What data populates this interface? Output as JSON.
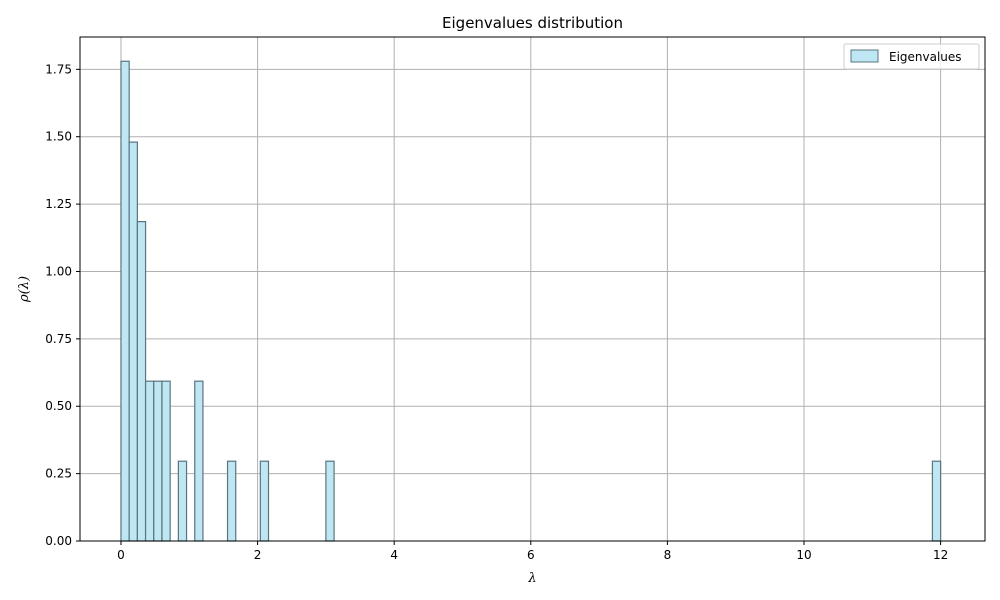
{
  "chart_data": {
    "type": "bar",
    "title": "Eigenvalues distribution",
    "xlabel": "λ",
    "ylabel": "ρ(λ)",
    "xlim": [
      -0.6,
      12.65
    ],
    "ylim": [
      0,
      1.87
    ],
    "xticks": [
      0,
      2,
      4,
      6,
      8,
      10,
      12
    ],
    "yticks": [
      0.0,
      0.25,
      0.5,
      0.75,
      1.0,
      1.25,
      1.5,
      1.75
    ],
    "ytick_labels": [
      "0.00",
      "0.25",
      "0.50",
      "0.75",
      "1.00",
      "1.25",
      "1.50",
      "1.75"
    ],
    "grid": true,
    "legend_position": "top-right",
    "bin_width": 0.12,
    "bin_edges_x": [
      0.0,
      0.12,
      0.24,
      0.36,
      0.48,
      0.6,
      0.84,
      1.08,
      1.56,
      2.04,
      3.0,
      11.88
    ],
    "values": [
      1.78,
      1.48,
      1.185,
      0.593,
      0.593,
      0.593,
      0.296,
      0.593,
      0.296,
      0.296,
      0.296,
      0.296
    ],
    "series": [
      {
        "name": "Eigenvalues",
        "fill": "#bfe6f3",
        "stroke": "#5a7480"
      }
    ]
  }
}
